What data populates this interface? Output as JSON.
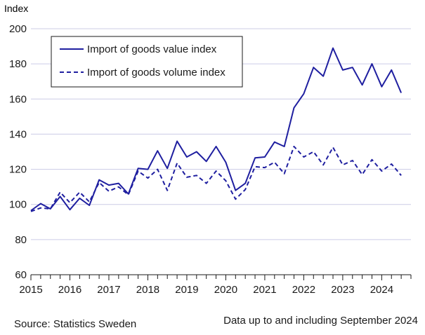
{
  "chart_data": {
    "type": "line",
    "ylabel": "Index",
    "ylim": [
      60,
      200
    ],
    "yticks": [
      60,
      80,
      100,
      120,
      140,
      160,
      180,
      200
    ],
    "xlim": [
      2015.0,
      2024.75
    ],
    "xticks": [
      "2015",
      "2016",
      "2017",
      "2018",
      "2019",
      "2020",
      "2021",
      "2022",
      "2023",
      "2024"
    ],
    "grid": "horizontal",
    "legend_position": "top-left",
    "x": [
      2015.0,
      2015.25,
      2015.5,
      2015.75,
      2016.0,
      2016.25,
      2016.5,
      2016.75,
      2017.0,
      2017.25,
      2017.5,
      2017.75,
      2018.0,
      2018.25,
      2018.5,
      2018.75,
      2019.0,
      2019.25,
      2019.5,
      2019.75,
      2020.0,
      2020.25,
      2020.5,
      2020.75,
      2021.0,
      2021.25,
      2021.5,
      2021.75,
      2022.0,
      2022.25,
      2022.5,
      2022.75,
      2023.0,
      2023.25,
      2023.5,
      2023.75,
      2024.0,
      2024.25,
      2024.5
    ],
    "series": [
      {
        "name": "Import of goods value index",
        "style": "solid",
        "color": "#1f1fa0",
        "values": [
          96.5,
          100.5,
          97.5,
          104.5,
          97,
          103.5,
          99.5,
          114,
          111,
          112,
          106,
          120.5,
          120,
          130.5,
          120.5,
          136,
          127,
          130,
          124.5,
          133,
          124,
          108,
          112,
          126.5,
          127,
          135.5,
          133,
          155,
          163,
          178,
          173,
          189,
          176.5,
          178,
          168,
          180,
          167,
          176.5,
          163.5
        ]
      },
      {
        "name": "Import of goods volume index",
        "style": "dashed",
        "color": "#1f1fa0",
        "values": [
          96,
          98,
          97.5,
          107,
          101,
          107,
          101.5,
          112.5,
          107.5,
          110,
          105.5,
          119,
          115,
          120,
          108,
          123.5,
          115.5,
          116.5,
          112,
          119,
          113.5,
          103,
          108.5,
          121.5,
          121,
          124,
          117.5,
          133,
          127,
          130,
          122.5,
          132.5,
          122.5,
          125,
          117,
          125.5,
          119,
          123,
          116.5
        ]
      }
    ]
  },
  "footer": {
    "source": "Source: Statistics Sweden",
    "note": "Data up to and including September 2024"
  }
}
